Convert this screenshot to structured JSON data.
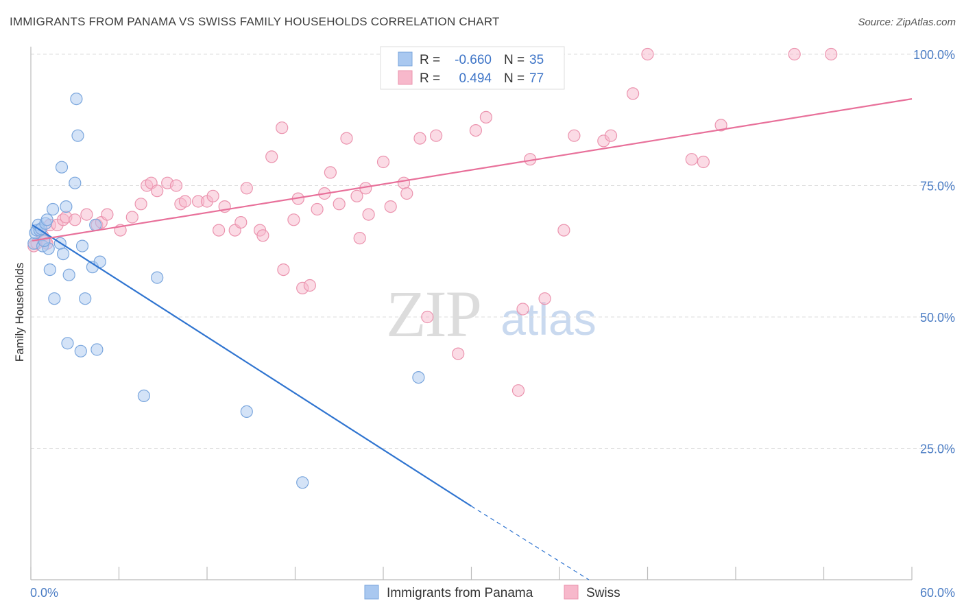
{
  "title": "IMMIGRANTS FROM PANAMA VS SWISS FAMILY HOUSEHOLDS CORRELATION CHART",
  "source": "Source: ZipAtlas.com",
  "watermark": {
    "zip": "ZIP",
    "atlas": "atlas"
  },
  "legend_top": {
    "rows": [
      {
        "r_label": "R =",
        "r_value": "-0.660",
        "n_label": "N =",
        "n_value": "35"
      },
      {
        "r_label": "R =",
        "r_value": "0.494",
        "n_label": "N =",
        "n_value": "77"
      }
    ]
  },
  "colors": {
    "panama_fill": "#a9c8f0",
    "panama_stroke": "#7aa6dd",
    "panama_line": "#2f74d0",
    "swiss_fill": "#f7b8cb",
    "swiss_stroke": "#eb93ae",
    "swiss_line": "#e8709a",
    "grid": "#dddddd",
    "tick_text": "#4a7cc4"
  },
  "chart_data": {
    "type": "scatter",
    "title": "IMMIGRANTS FROM PANAMA VS SWISS FAMILY HOUSEHOLDS CORRELATION CHART",
    "xlabel": "",
    "ylabel": "Family Households",
    "x_tick_labels": [
      "0.0%",
      "60.0%"
    ],
    "y_tick_labels": [
      "100.0%",
      "75.0%",
      "50.0%",
      "25.0%"
    ],
    "xlim": [
      0,
      60
    ],
    "ylim": [
      0,
      100
    ],
    "grid": true,
    "legend_position": "bottom",
    "series": [
      {
        "name": "Immigrants from Panama",
        "r": -0.66,
        "n": 35,
        "points": [
          [
            0.2,
            64.0
          ],
          [
            0.3,
            66.0
          ],
          [
            0.4,
            66.5
          ],
          [
            0.5,
            67.5
          ],
          [
            0.6,
            66.5
          ],
          [
            0.7,
            66.8
          ],
          [
            0.8,
            63.5
          ],
          [
            1.0,
            67.8
          ],
          [
            1.1,
            68.5
          ],
          [
            1.2,
            63.0
          ],
          [
            1.3,
            59.0
          ],
          [
            1.5,
            70.5
          ],
          [
            1.6,
            53.5
          ],
          [
            2.0,
            64.0
          ],
          [
            2.1,
            78.5
          ],
          [
            2.2,
            62.0
          ],
          [
            2.4,
            71.0
          ],
          [
            2.5,
            45.0
          ],
          [
            2.6,
            58.0
          ],
          [
            3.0,
            75.5
          ],
          [
            3.1,
            91.5
          ],
          [
            3.2,
            84.5
          ],
          [
            3.4,
            43.5
          ],
          [
            3.5,
            63.5
          ],
          [
            3.7,
            53.5
          ],
          [
            4.2,
            59.5
          ],
          [
            4.5,
            43.8
          ],
          [
            4.7,
            60.5
          ],
          [
            7.7,
            35.0
          ],
          [
            8.6,
            57.5
          ],
          [
            14.7,
            32.0
          ],
          [
            18.5,
            18.5
          ],
          [
            26.4,
            38.5
          ],
          [
            4.4,
            67.5
          ],
          [
            0.9,
            64.5
          ]
        ],
        "trend": {
          "x0": 0.1,
          "y0": 67.5,
          "x1": 30.0,
          "y1": 14.0,
          "dashed_to_x": 38.0,
          "dashed_to_y": 0.0
        }
      },
      {
        "name": "Swiss",
        "r": 0.494,
        "n": 77,
        "points": [
          [
            0.2,
            63.5
          ],
          [
            0.4,
            64.0
          ],
          [
            0.8,
            65.5
          ],
          [
            1.0,
            64.5
          ],
          [
            1.1,
            64.0
          ],
          [
            1.3,
            67.5
          ],
          [
            1.8,
            67.5
          ],
          [
            2.2,
            68.5
          ],
          [
            2.4,
            69.0
          ],
          [
            3.0,
            68.5
          ],
          [
            3.8,
            69.5
          ],
          [
            4.5,
            67.5
          ],
          [
            4.8,
            68.0
          ],
          [
            5.2,
            69.5
          ],
          [
            6.1,
            66.5
          ],
          [
            6.9,
            69.0
          ],
          [
            7.5,
            71.5
          ],
          [
            7.9,
            75.0
          ],
          [
            8.2,
            75.5
          ],
          [
            8.6,
            74.0
          ],
          [
            9.3,
            75.5
          ],
          [
            9.9,
            75.0
          ],
          [
            10.2,
            71.5
          ],
          [
            10.5,
            72.0
          ],
          [
            11.4,
            72.0
          ],
          [
            12.0,
            72.0
          ],
          [
            12.4,
            73.0
          ],
          [
            12.8,
            66.5
          ],
          [
            13.2,
            71.0
          ],
          [
            13.9,
            66.5
          ],
          [
            14.3,
            68.0
          ],
          [
            14.7,
            74.5
          ],
          [
            15.6,
            66.5
          ],
          [
            15.8,
            65.5
          ],
          [
            16.4,
            80.5
          ],
          [
            17.1,
            86.0
          ],
          [
            17.2,
            59.0
          ],
          [
            17.9,
            68.5
          ],
          [
            18.2,
            72.5
          ],
          [
            18.5,
            55.5
          ],
          [
            19.0,
            56.0
          ],
          [
            19.5,
            70.5
          ],
          [
            20.0,
            73.5
          ],
          [
            20.4,
            77.5
          ],
          [
            21.0,
            71.5
          ],
          [
            22.4,
            65.0
          ],
          [
            21.5,
            84.0
          ],
          [
            22.2,
            73.0
          ],
          [
            22.8,
            74.5
          ],
          [
            23.0,
            69.5
          ],
          [
            24.0,
            79.5
          ],
          [
            24.5,
            71.0
          ],
          [
            25.4,
            75.5
          ],
          [
            25.6,
            73.5
          ],
          [
            26.5,
            84.0
          ],
          [
            27.0,
            50.0
          ],
          [
            27.6,
            84.5
          ],
          [
            29.1,
            43.0
          ],
          [
            30.3,
            85.5
          ],
          [
            31.0,
            88.0
          ],
          [
            31.2,
            100.0
          ],
          [
            33.2,
            36.0
          ],
          [
            33.5,
            51.5
          ],
          [
            34.0,
            80.0
          ],
          [
            35.0,
            53.5
          ],
          [
            35.8,
            100.0
          ],
          [
            36.3,
            66.5
          ],
          [
            37.0,
            84.5
          ],
          [
            39.0,
            83.5
          ],
          [
            39.5,
            84.5
          ],
          [
            41.0,
            92.5
          ],
          [
            42.0,
            100.0
          ],
          [
            45.0,
            80.0
          ],
          [
            45.8,
            79.5
          ],
          [
            47.0,
            86.5
          ],
          [
            52.0,
            100.0
          ],
          [
            54.5,
            100.0
          ]
        ],
        "trend": {
          "x0": 0.1,
          "y0": 64.5,
          "x1": 60.0,
          "y1": 91.5
        }
      }
    ]
  },
  "bottom_legend": {
    "items": [
      {
        "label": "Immigrants from Panama"
      },
      {
        "label": "Swiss"
      }
    ]
  }
}
